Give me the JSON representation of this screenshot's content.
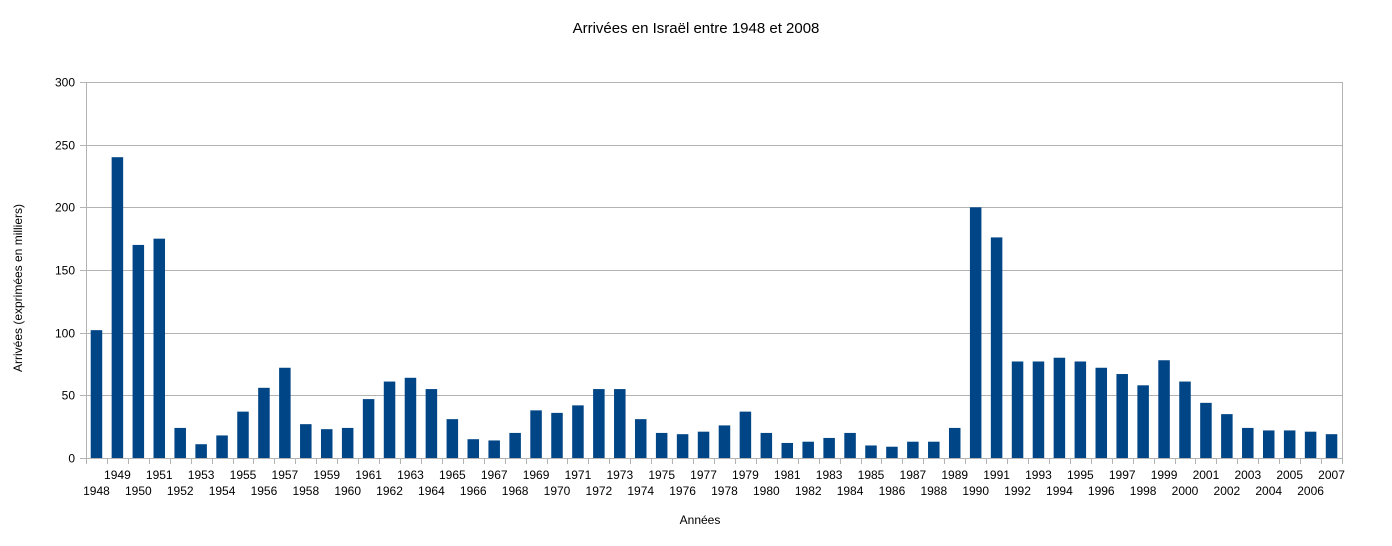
{
  "chart_data": {
    "type": "bar",
    "title": "Arrivées en Israël entre 1948 et 2008",
    "xlabel": "Années",
    "ylabel": "Arrivées (exprimées en milliers)",
    "ylim": [
      0,
      300
    ],
    "yticks": [
      0,
      50,
      100,
      150,
      200,
      250,
      300
    ],
    "grid": true,
    "bar_color": "#004586",
    "categories": [
      "1948",
      "1949",
      "1950",
      "1951",
      "1952",
      "1953",
      "1954",
      "1955",
      "1956",
      "1957",
      "1958",
      "1959",
      "1960",
      "1961",
      "1962",
      "1963",
      "1964",
      "1965",
      "1966",
      "1967",
      "1968",
      "1969",
      "1970",
      "1971",
      "1972",
      "1973",
      "1974",
      "1975",
      "1976",
      "1977",
      "1978",
      "1979",
      "1980",
      "1981",
      "1982",
      "1983",
      "1984",
      "1985",
      "1986",
      "1987",
      "1988",
      "1989",
      "1990",
      "1991",
      "1992",
      "1993",
      "1994",
      "1995",
      "1996",
      "1997",
      "1998",
      "1999",
      "2000",
      "2001",
      "2002",
      "2003",
      "2004",
      "2005",
      "2006",
      "2007"
    ],
    "values": [
      102,
      240,
      170,
      175,
      24,
      11,
      18,
      37,
      56,
      72,
      27,
      23,
      24,
      47,
      61,
      64,
      55,
      31,
      15,
      14,
      20,
      38,
      36,
      42,
      55,
      55,
      31,
      20,
      19,
      21,
      26,
      37,
      20,
      12,
      13,
      16,
      20,
      10,
      9,
      13,
      13,
      24,
      200,
      176,
      77,
      77,
      80,
      77,
      72,
      67,
      58,
      78,
      61,
      44,
      35,
      24,
      22,
      22,
      21,
      19
    ]
  }
}
